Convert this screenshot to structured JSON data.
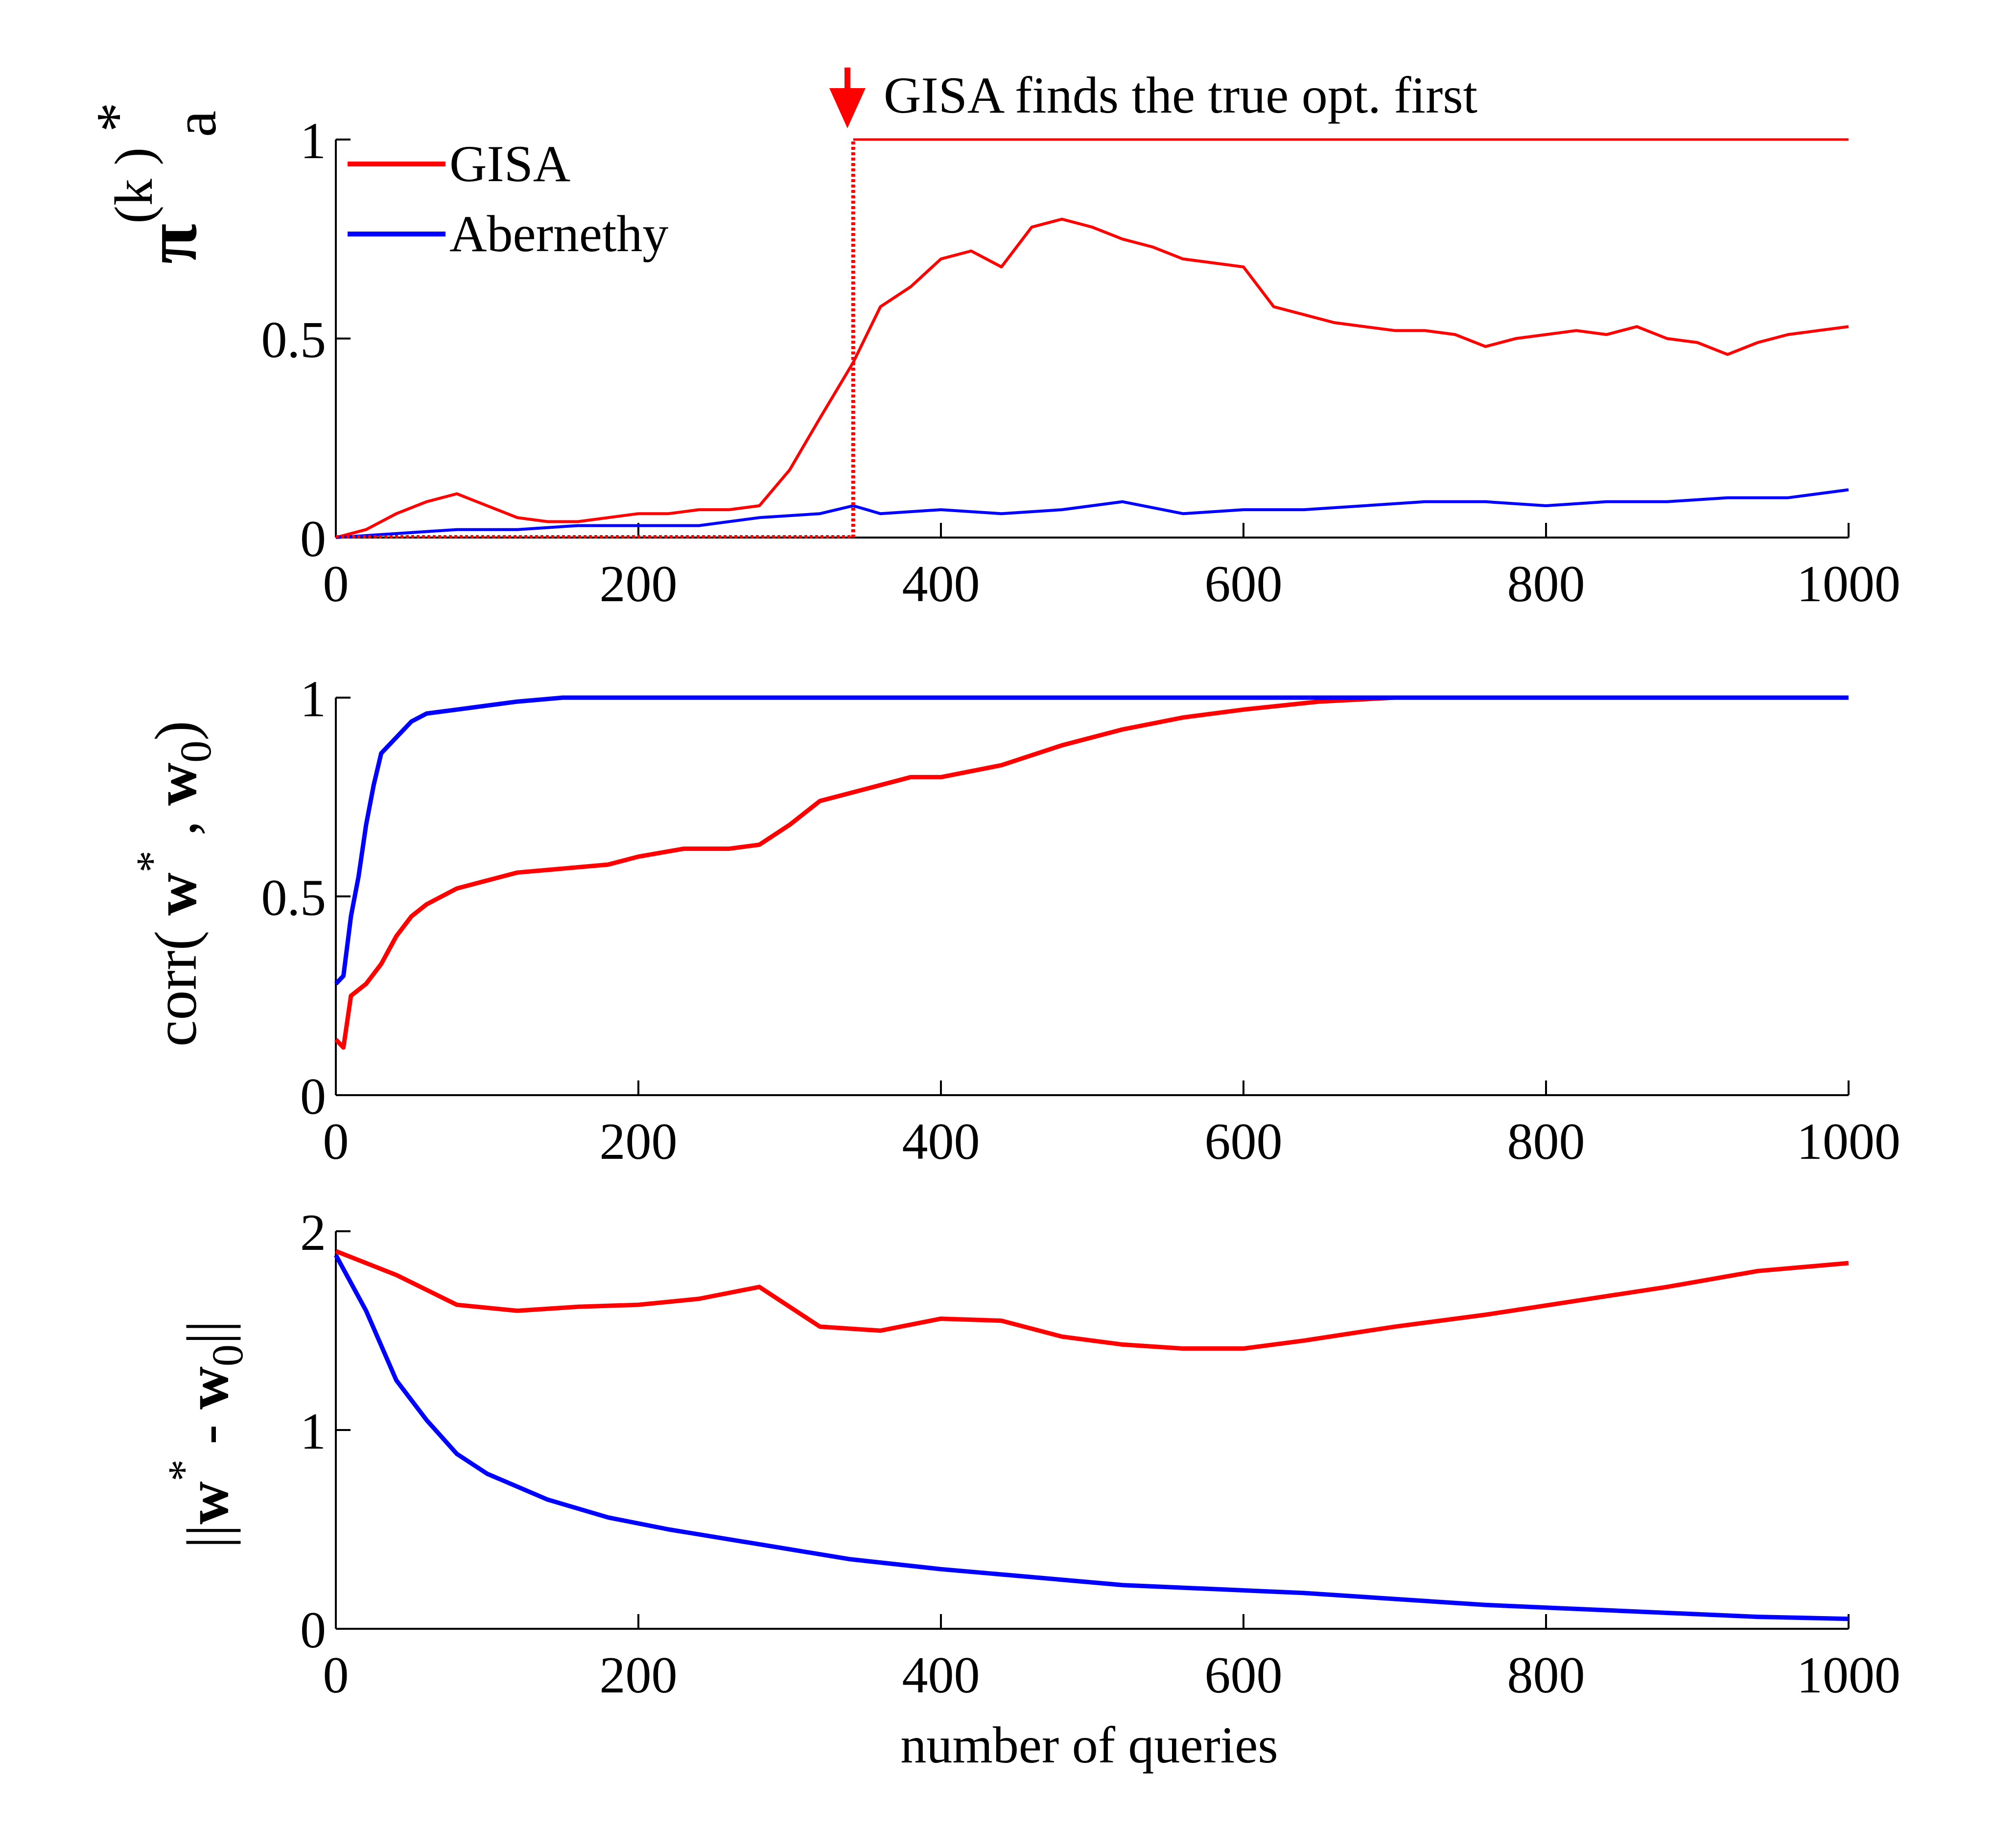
{
  "colors": {
    "gisa": "#ff0000",
    "abernethy": "#0000ff",
    "axis": "#000000"
  },
  "chart_data": [
    {
      "type": "line",
      "xlim": [
        0,
        1000
      ],
      "ylim": [
        0,
        1
      ],
      "xticks": [
        "0",
        "200",
        "400",
        "600",
        "800",
        "1000"
      ],
      "yticks": [
        "0",
        "0.5",
        "1"
      ],
      "ylabel": {
        "base": "π",
        "sup": "*",
        "sub": "a",
        "paren": "(k )"
      },
      "xlabel": "",
      "legend": {
        "placement": "top-left",
        "entries": [
          "GISA",
          "Abernethy"
        ]
      },
      "annotation": {
        "text": "GISA finds the true opt. first",
        "x": 342,
        "step_level": 1
      },
      "series": [
        {
          "name": "GISA",
          "x": [
            0,
            20,
            40,
            60,
            80,
            100,
            120,
            140,
            160,
            180,
            200,
            220,
            240,
            260,
            280,
            300,
            320,
            342,
            360,
            380,
            400,
            420,
            440,
            460,
            480,
            500,
            520,
            540,
            560,
            580,
            600,
            620,
            640,
            660,
            680,
            700,
            720,
            740,
            760,
            780,
            800,
            820,
            840,
            860,
            880,
            900,
            920,
            940,
            960,
            980,
            1000
          ],
          "y": [
            0,
            0.02,
            0.06,
            0.09,
            0.11,
            0.08,
            0.05,
            0.04,
            0.04,
            0.05,
            0.06,
            0.06,
            0.07,
            0.07,
            0.08,
            0.17,
            0.3,
            0.44,
            0.58,
            0.63,
            0.7,
            0.72,
            0.68,
            0.78,
            0.8,
            0.78,
            0.75,
            0.73,
            0.7,
            0.69,
            0.68,
            0.58,
            0.56,
            0.54,
            0.53,
            0.52,
            0.52,
            0.51,
            0.48,
            0.5,
            0.51,
            0.52,
            0.51,
            0.53,
            0.5,
            0.49,
            0.46,
            0.49,
            0.51,
            0.52,
            0.53
          ]
        },
        {
          "name": "Abernethy",
          "x": [
            0,
            40,
            80,
            120,
            160,
            200,
            240,
            280,
            320,
            342,
            360,
            400,
            440,
            480,
            520,
            560,
            600,
            640,
            680,
            720,
            760,
            800,
            840,
            880,
            920,
            960,
            1000
          ],
          "y": [
            0,
            0.01,
            0.02,
            0.02,
            0.03,
            0.03,
            0.03,
            0.05,
            0.06,
            0.08,
            0.06,
            0.07,
            0.06,
            0.07,
            0.09,
            0.06,
            0.07,
            0.07,
            0.08,
            0.09,
            0.09,
            0.08,
            0.09,
            0.09,
            0.1,
            0.1,
            0.12
          ]
        }
      ]
    },
    {
      "type": "line",
      "xlim": [
        0,
        1000
      ],
      "ylim": [
        0,
        1
      ],
      "xticks": [
        "0",
        "200",
        "400",
        "600",
        "800",
        "1000"
      ],
      "yticks": [
        "0",
        "0.5",
        "1"
      ],
      "ylabel": {
        "pre": "corr( ",
        "w": "w",
        "sup": "*",
        "mid": " , ",
        "w0": "w",
        "sub": "0",
        "post": ")"
      },
      "xlabel": "",
      "series": [
        {
          "name": "GISA",
          "x": [
            0,
            5,
            10,
            20,
            30,
            40,
            50,
            60,
            80,
            100,
            120,
            150,
            180,
            200,
            230,
            260,
            280,
            300,
            320,
            350,
            380,
            400,
            440,
            480,
            520,
            560,
            600,
            650,
            700,
            800,
            1000
          ],
          "y": [
            0.14,
            0.12,
            0.25,
            0.28,
            0.33,
            0.4,
            0.45,
            0.48,
            0.52,
            0.54,
            0.56,
            0.57,
            0.58,
            0.6,
            0.62,
            0.62,
            0.63,
            0.68,
            0.74,
            0.77,
            0.8,
            0.8,
            0.83,
            0.88,
            0.92,
            0.95,
            0.97,
            0.99,
            1.0,
            1.0,
            1.0
          ]
        },
        {
          "name": "Abernethy",
          "x": [
            0,
            5,
            10,
            15,
            20,
            25,
            30,
            40,
            50,
            60,
            80,
            100,
            120,
            150,
            200,
            1000
          ],
          "y": [
            0.28,
            0.3,
            0.45,
            0.55,
            0.68,
            0.78,
            0.86,
            0.9,
            0.94,
            0.96,
            0.97,
            0.98,
            0.99,
            1.0,
            1.0,
            1.0
          ]
        }
      ]
    },
    {
      "type": "line",
      "xlim": [
        0,
        1000
      ],
      "ylim": [
        0,
        2
      ],
      "xticks": [
        "0",
        "200",
        "400",
        "600",
        "800",
        "1000"
      ],
      "yticks": [
        "0",
        "1",
        "2"
      ],
      "ylabel": {
        "pre": "||",
        "w": "w",
        "sup": "*",
        "mid": " - ",
        "w0": "w",
        "sub": "0",
        "post": "||"
      },
      "xlabel": "number of queries",
      "series": [
        {
          "name": "GISA",
          "x": [
            0,
            40,
            80,
            120,
            160,
            200,
            240,
            280,
            320,
            360,
            400,
            440,
            480,
            520,
            560,
            600,
            640,
            700,
            760,
            820,
            880,
            940,
            1000
          ],
          "y": [
            1.9,
            1.78,
            1.63,
            1.6,
            1.62,
            1.63,
            1.66,
            1.72,
            1.52,
            1.5,
            1.56,
            1.55,
            1.47,
            1.43,
            1.41,
            1.41,
            1.45,
            1.52,
            1.58,
            1.65,
            1.72,
            1.8,
            1.84
          ]
        },
        {
          "name": "Abernethy",
          "x": [
            0,
            20,
            40,
            60,
            80,
            100,
            140,
            180,
            220,
            260,
            300,
            340,
            400,
            460,
            520,
            580,
            640,
            700,
            760,
            820,
            880,
            940,
            1000
          ],
          "y": [
            1.88,
            1.6,
            1.25,
            1.05,
            0.88,
            0.78,
            0.65,
            0.56,
            0.5,
            0.45,
            0.4,
            0.35,
            0.3,
            0.26,
            0.22,
            0.2,
            0.18,
            0.15,
            0.12,
            0.1,
            0.08,
            0.06,
            0.05
          ]
        }
      ]
    }
  ]
}
